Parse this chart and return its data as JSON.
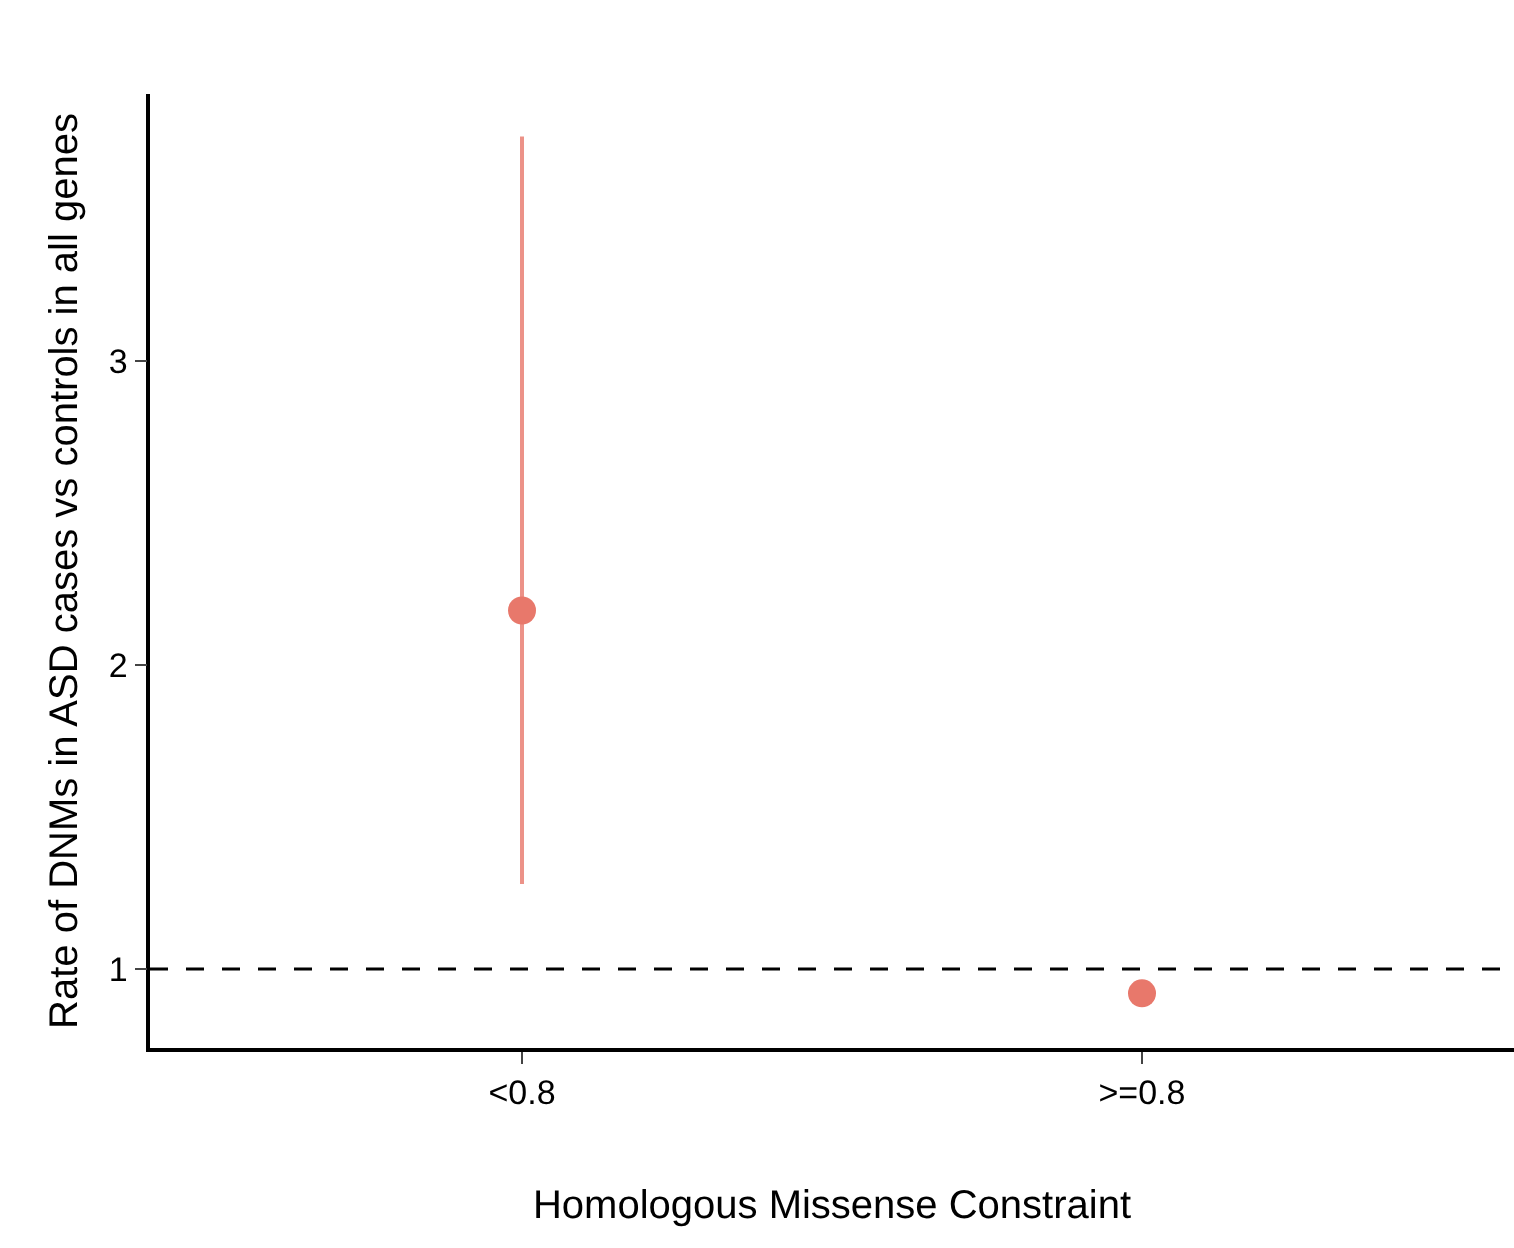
{
  "chart_data": {
    "type": "scatter",
    "xlabel": "Homologous Missense Constraint",
    "ylabel": "Rate of DNMs in ASD cases vs controls in all genes",
    "categories": [
      "<0.8",
      ">=0.8"
    ],
    "values": [
      2.18,
      0.92
    ],
    "errors": [
      [
        1.28,
        3.74
      ],
      null
    ],
    "color": "#e8786b",
    "marker": "circle",
    "ylim": [
      0.74,
      3.88
    ],
    "yticks": [
      1,
      2,
      3
    ],
    "legend": false,
    "ref_lines": [
      {
        "axis": "y",
        "value": 1,
        "line_style": "dashed",
        "color": "#000000"
      }
    ]
  }
}
